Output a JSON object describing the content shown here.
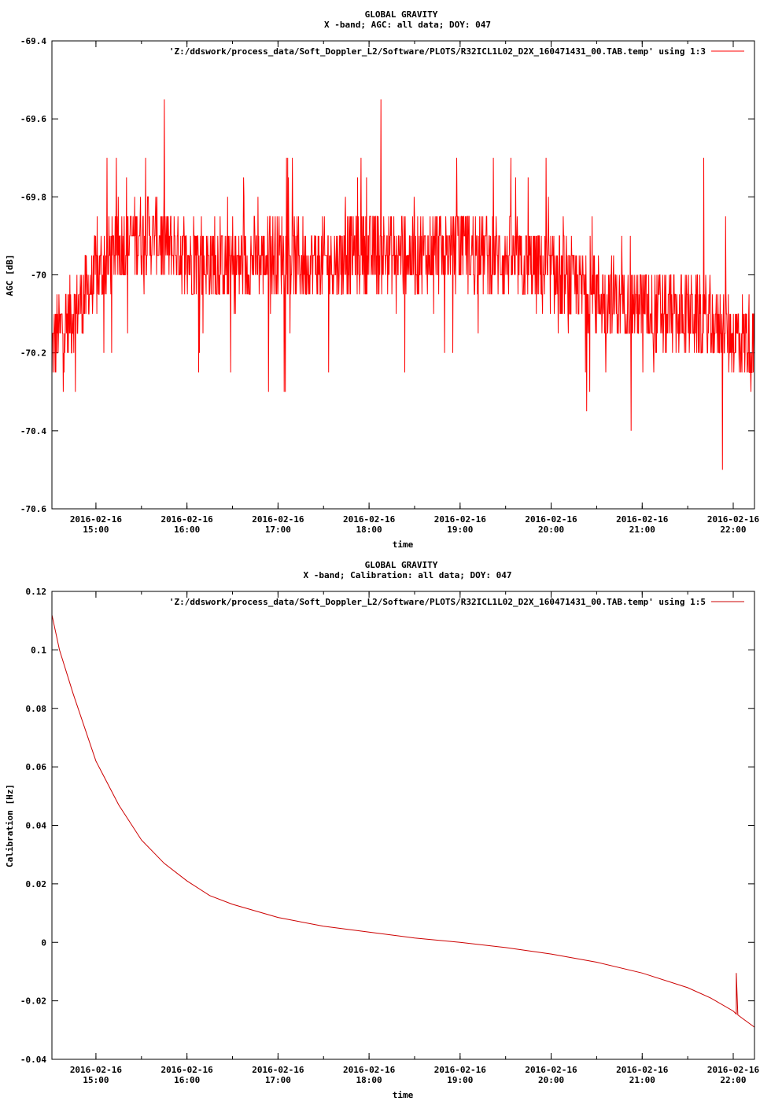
{
  "chart_data": [
    {
      "type": "line",
      "title": "GLOBAL GRAVITY",
      "subtitle": "X -band; AGC: all data; DOY: 047",
      "xlabel": "time",
      "ylabel": "AGC [dB]",
      "legend": "'Z:/ddswork/process_data/Soft_Doppler_L2/Software/PLOTS/R32ICL1L02_D2X_160471431_00.TAB.temp' using 1:3",
      "legend_position": "top-right",
      "grid": false,
      "color": "#ff0000",
      "xlim": [
        "2016-02-16 14:31",
        "2016-02-16 22:14"
      ],
      "ylim": [
        -70.6,
        -69.4
      ],
      "yticks": [
        "-69.4",
        "-69.6",
        "-69.8",
        "-70",
        "-70.2",
        "-70.4",
        "-70.6"
      ],
      "xtick_dates": [
        "2016-02-16",
        "2016-02-16",
        "2016-02-16",
        "2016-02-16",
        "2016-02-16",
        "2016-02-16",
        "2016-02-16",
        "2016-02-16"
      ],
      "xtick_times": [
        "15:00",
        "16:00",
        "17:00",
        "18:00",
        "19:00",
        "20:00",
        "21:00",
        "22:00"
      ],
      "series": [
        {
          "x": [
            "2016-02-16 14:31",
            "2016-02-16 14:35",
            "2016-02-16 14:45",
            "2016-02-16 15:00",
            "2016-02-16 15:10",
            "2016-02-16 15:20",
            "2016-02-16 15:30",
            "2016-02-16 15:40",
            "2016-02-16 15:50",
            "2016-02-16 16:00",
            "2016-02-16 16:15",
            "2016-02-16 16:30",
            "2016-02-16 16:45",
            "2016-02-16 17:00",
            "2016-02-16 17:15",
            "2016-02-16 17:30",
            "2016-02-16 17:45",
            "2016-02-16 18:00",
            "2016-02-16 18:15",
            "2016-02-16 18:30",
            "2016-02-16 18:45",
            "2016-02-16 19:00",
            "2016-02-16 19:15",
            "2016-02-16 19:30",
            "2016-02-16 19:45",
            "2016-02-16 20:00",
            "2016-02-16 20:15",
            "2016-02-16 20:30",
            "2016-02-16 20:45",
            "2016-02-16 21:00",
            "2016-02-16 21:15",
            "2016-02-16 21:30",
            "2016-02-16 21:45",
            "2016-02-16 22:00",
            "2016-02-16 22:14"
          ],
          "y": [
            -70.2,
            -70.15,
            -70.1,
            -70.0,
            -69.95,
            -69.92,
            -69.9,
            -69.9,
            -69.93,
            -69.95,
            -69.97,
            -69.98,
            -69.96,
            -69.95,
            -69.96,
            -69.97,
            -69.95,
            -69.93,
            -69.94,
            -69.95,
            -69.94,
            -69.93,
            -69.94,
            -69.96,
            -69.98,
            -70.0,
            -70.02,
            -70.05,
            -70.07,
            -70.08,
            -70.1,
            -70.1,
            -70.12,
            -70.15,
            -70.17
          ],
          "noise_range": [
            -70.5,
            -69.5
          ]
        }
      ]
    },
    {
      "type": "line",
      "title": "GLOBAL GRAVITY",
      "subtitle": "X -band; Calibration: all data; DOY: 047",
      "xlabel": "time",
      "ylabel": "Calibration [Hz]",
      "legend": "'Z:/ddswork/process_data/Soft_Doppler_L2/Software/PLOTS/R32ICL1L02_D2X_160471431_00.TAB.temp' using 1:5",
      "legend_position": "top-right",
      "grid": false,
      "color": "#cc0000",
      "xlim": [
        "2016-02-16 14:31",
        "2016-02-16 22:14"
      ],
      "ylim": [
        -0.04,
        0.12
      ],
      "yticks": [
        "0.12",
        "0.1",
        "0.08",
        "0.06",
        "0.04",
        "0.02",
        "0",
        "-0.02",
        "-0.04"
      ],
      "xtick_dates": [
        "2016-02-16",
        "2016-02-16",
        "2016-02-16",
        "2016-02-16",
        "2016-02-16",
        "2016-02-16",
        "2016-02-16",
        "2016-02-16"
      ],
      "xtick_times": [
        "15:00",
        "16:00",
        "17:00",
        "18:00",
        "19:00",
        "20:00",
        "21:00",
        "22:00"
      ],
      "series": [
        {
          "x": [
            "2016-02-16 14:31",
            "2016-02-16 14:36",
            "2016-02-16 14:45",
            "2016-02-16 15:00",
            "2016-02-16 15:15",
            "2016-02-16 15:30",
            "2016-02-16 15:45",
            "2016-02-16 16:00",
            "2016-02-16 16:15",
            "2016-02-16 16:30",
            "2016-02-16 17:00",
            "2016-02-16 17:30",
            "2016-02-16 18:00",
            "2016-02-16 18:30",
            "2016-02-16 19:00",
            "2016-02-16 19:30",
            "2016-02-16 20:00",
            "2016-02-16 20:30",
            "2016-02-16 21:00",
            "2016-02-16 21:30",
            "2016-02-16 21:45",
            "2016-02-16 22:00",
            "2016-02-16 22:02",
            "2016-02-16 22:02",
            "2016-02-16 22:03",
            "2016-02-16 22:03",
            "2016-02-16 22:06",
            "2016-02-16 22:14"
          ],
          "y": [
            0.112,
            0.1,
            0.085,
            0.062,
            0.047,
            0.035,
            0.027,
            0.021,
            0.016,
            0.013,
            0.0085,
            0.0055,
            0.0035,
            0.0015,
            0.0,
            -0.0018,
            -0.004,
            -0.0068,
            -0.0105,
            -0.0155,
            -0.019,
            -0.0235,
            -0.0245,
            -0.0105,
            -0.0245,
            -0.0248,
            -0.026,
            -0.029
          ]
        }
      ]
    }
  ]
}
